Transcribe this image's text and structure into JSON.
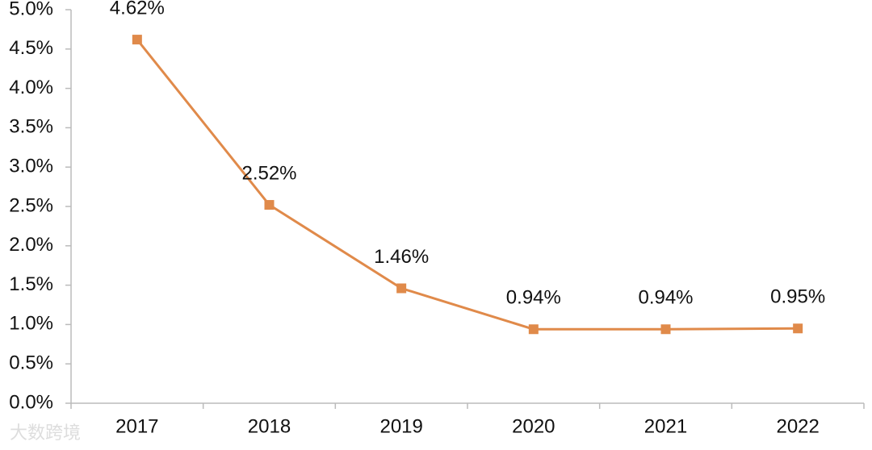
{
  "chart_data": {
    "type": "line",
    "categories": [
      "2017",
      "2018",
      "2019",
      "2020",
      "2021",
      "2022"
    ],
    "series": [
      {
        "color": "#e08a4a",
        "values": [
          4.62,
          2.52,
          1.46,
          0.94,
          0.94,
          0.95
        ],
        "value_labels": [
          "4.62%",
          "2.52%",
          "1.46%",
          "0.94%",
          "0.94%",
          "0.95%"
        ]
      }
    ],
    "ylim": [
      0,
      5
    ],
    "yticks": [
      {
        "value": 0,
        "label": "0.0%"
      },
      {
        "value": 0.5,
        "label": "0.5%"
      },
      {
        "value": 1,
        "label": "1.0%"
      },
      {
        "value": 1.5,
        "label": "1.5%"
      },
      {
        "value": 2,
        "label": "2.0%"
      },
      {
        "value": 2.5,
        "label": "2.5%"
      },
      {
        "value": 3,
        "label": "3.0%"
      },
      {
        "value": 3.5,
        "label": "3.5%"
      },
      {
        "value": 4,
        "label": "4.0%"
      },
      {
        "value": 4.5,
        "label": "4.5%"
      },
      {
        "value": 5,
        "label": "5.0%"
      }
    ],
    "watermark": "大数跨境"
  }
}
